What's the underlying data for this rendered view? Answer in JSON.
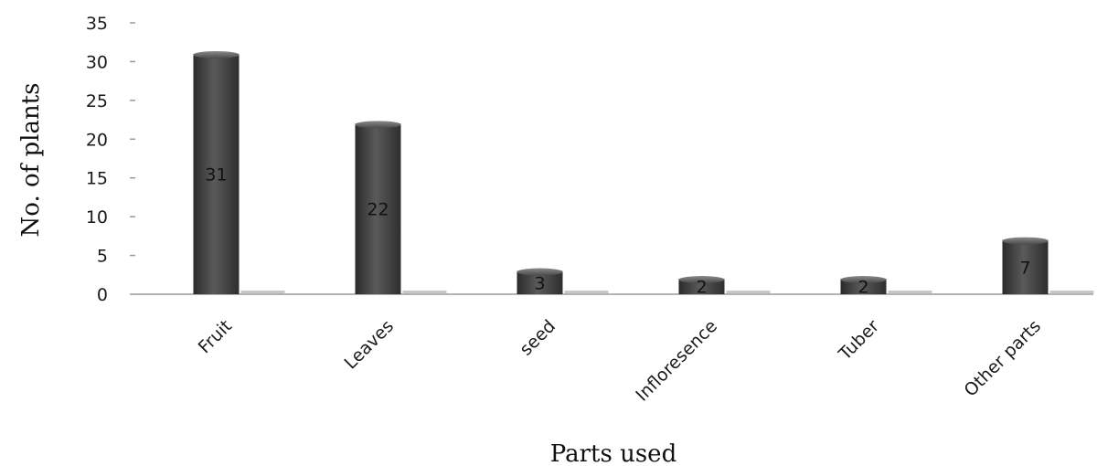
{
  "chart_data": {
    "type": "bar",
    "title": "",
    "xlabel": "Parts used",
    "ylabel": "No. of plants",
    "categories": [
      "Fruit",
      "Leaves",
      "seed",
      "Infloresence",
      "Tuber",
      "Other parts"
    ],
    "values": [
      31,
      22,
      3,
      2,
      2,
      7
    ],
    "data_labels": [
      "31",
      "22",
      "3",
      "2",
      "2",
      "7"
    ],
    "ylim": [
      0,
      35
    ],
    "yticks": [
      0,
      5,
      10,
      15,
      20,
      25,
      30,
      35
    ],
    "grid": false,
    "legend": "none",
    "colors": {
      "bar": "#4a4a4a",
      "bar_dark": "#2c2c2c",
      "bar_light": "#6e6e6e",
      "axis": "#9a9a9a"
    }
  }
}
